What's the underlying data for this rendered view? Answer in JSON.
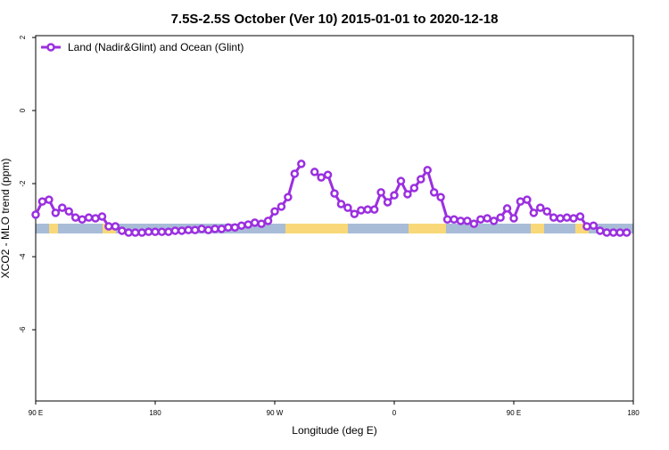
{
  "chart_data": {
    "type": "line",
    "title": "7.5S-2.5S October (Ver 10)   2015-01-01 to 2020-12-18",
    "x_label": "Longitude (deg E)",
    "y_label": "XCO2 - MLO trend (ppm)",
    "x": [
      90,
      95,
      100,
      105,
      110,
      115,
      120,
      125,
      130,
      135,
      140,
      145,
      150,
      155,
      160,
      165,
      170,
      175,
      180,
      185,
      190,
      195,
      200,
      205,
      210,
      215,
      220,
      225,
      230,
      235,
      240,
      245,
      250,
      255,
      260,
      265,
      270,
      275,
      280,
      285,
      290,
      295,
      300,
      305,
      310,
      315,
      320,
      325,
      330,
      335,
      340,
      345,
      350,
      355,
      360,
      365,
      370,
      375,
      380,
      385,
      390,
      395,
      400,
      405,
      410,
      415,
      420,
      425,
      430,
      435,
      440,
      445,
      450,
      455,
      460,
      465,
      470,
      475,
      480,
      485,
      490,
      495,
      500,
      505,
      510,
      515,
      520,
      525,
      530,
      535
    ],
    "series": [
      {
        "name": "Land (Nadir&Glint) and Ocean (Glint)",
        "color": "#9b2fe0",
        "values": [
          -2.85,
          -2.49,
          -2.44,
          -2.8,
          -2.66,
          -2.76,
          -2.93,
          -2.98,
          -2.93,
          -2.95,
          -2.9,
          -3.17,
          -3.17,
          -3.29,
          -3.34,
          -3.34,
          -3.34,
          -3.32,
          -3.32,
          -3.32,
          -3.32,
          -3.29,
          -3.29,
          -3.27,
          -3.27,
          -3.24,
          -3.27,
          -3.24,
          -3.24,
          -3.2,
          -3.2,
          -3.15,
          -3.12,
          -3.07,
          -3.1,
          -3.02,
          -2.76,
          -2.63,
          -2.37,
          -1.73,
          -1.46,
          null,
          -1.68,
          -1.83,
          -1.76,
          -2.27,
          -2.56,
          -2.66,
          -2.83,
          -2.73,
          -2.71,
          -2.71,
          -2.24,
          -2.51,
          -2.32,
          -1.93,
          -2.29,
          -2.12,
          -1.88,
          -1.63,
          -2.24,
          -2.37,
          -2.98,
          -2.98,
          -3.02,
          -3.02,
          -3.1,
          -2.98,
          -2.95,
          -3.02,
          -2.93,
          -2.68,
          -2.95,
          -2.49,
          -2.44,
          -2.8,
          -2.66,
          -2.76,
          -2.93,
          -2.95,
          -2.93,
          -2.95,
          -2.9,
          -3.17,
          -3.15,
          -3.29,
          -3.34,
          -3.34,
          -3.34,
          -3.34
        ]
      }
    ],
    "xlim": [
      90,
      540
    ],
    "xticks": [
      {
        "value": 90,
        "label": "90 E"
      },
      180,
      {
        "value": 270,
        "label": "90 W"
      },
      {
        "value": 360,
        "label": "0"
      },
      {
        "value": 450,
        "label": "90 E"
      },
      {
        "value": 540,
        "label": "180"
      }
    ],
    "ylim": [
      -7.95,
      2.05
    ],
    "yticks": [
      2,
      0,
      -2,
      -4,
      -6
    ],
    "legend": "top-left"
  }
}
